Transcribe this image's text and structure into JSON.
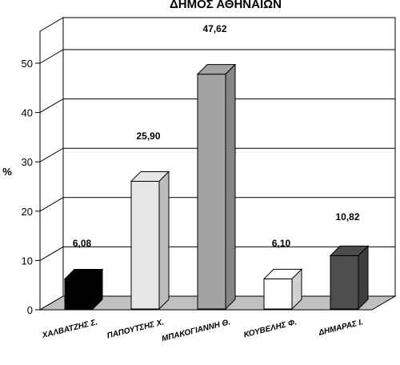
{
  "chart_data": {
    "type": "bar",
    "title": "ΔΗΜΟΣ ΑΘΗΝΑΙΩΝ",
    "xlabel": "",
    "ylabel": "%",
    "ylim": [
      0,
      55
    ],
    "yticks": [
      0,
      10,
      20,
      30,
      40,
      50
    ],
    "grid": true,
    "categories": [
      "ΧΑΛΒΑΤΖΗΣ Σ.",
      "ΠΑΠΟΥΤΣΗΣ Χ.",
      "ΜΠΑΚΟΓΙΑΝΝΗ Θ.",
      "ΚΟΥΒΕΛΗΣ Φ.",
      "ΔΗΜΑΡΑΣ Ι."
    ],
    "values": [
      6.08,
      25.9,
      47.62,
      6.1,
      10.82
    ],
    "value_labels": [
      "6,08",
      "25,90",
      "47,62",
      "6,10",
      "10,82"
    ],
    "bar_colors": [
      "#000000",
      "#e6e6e6",
      "#a3a3a3",
      "#ffffff",
      "#4d4d4d"
    ],
    "floor_color": "#c0c0c0"
  }
}
